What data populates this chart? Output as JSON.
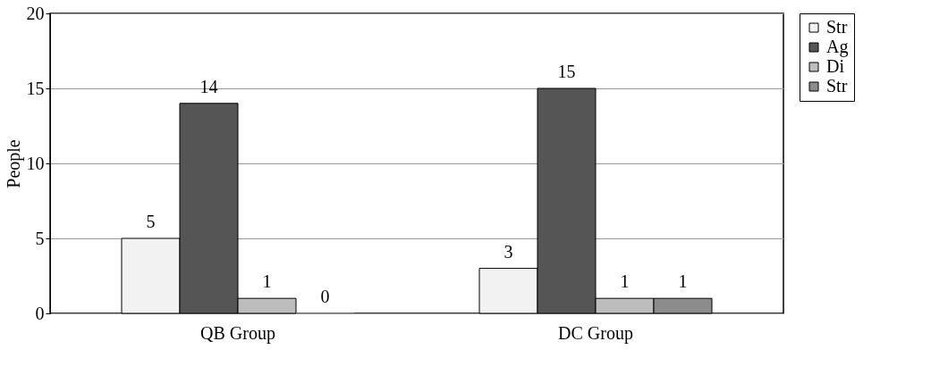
{
  "chart_data": {
    "type": "bar",
    "ylabel": "People",
    "categories": [
      "QB Group",
      "DC Group"
    ],
    "series": [
      {
        "name": "Str",
        "color": "#f2f2f2",
        "values": [
          5,
          3
        ]
      },
      {
        "name": "Ag",
        "color": "#555555",
        "values": [
          14,
          15
        ]
      },
      {
        "name": "Di",
        "color": "#bdbdbd",
        "values": [
          1,
          1
        ]
      },
      {
        "name": "Str",
        "color": "#8c8c8c",
        "values": [
          0,
          1
        ]
      }
    ],
    "ylim": [
      0,
      20
    ],
    "yticks": [
      0,
      5,
      10,
      15,
      20
    ],
    "grid": "y",
    "legend": "right",
    "data_labels": true
  }
}
